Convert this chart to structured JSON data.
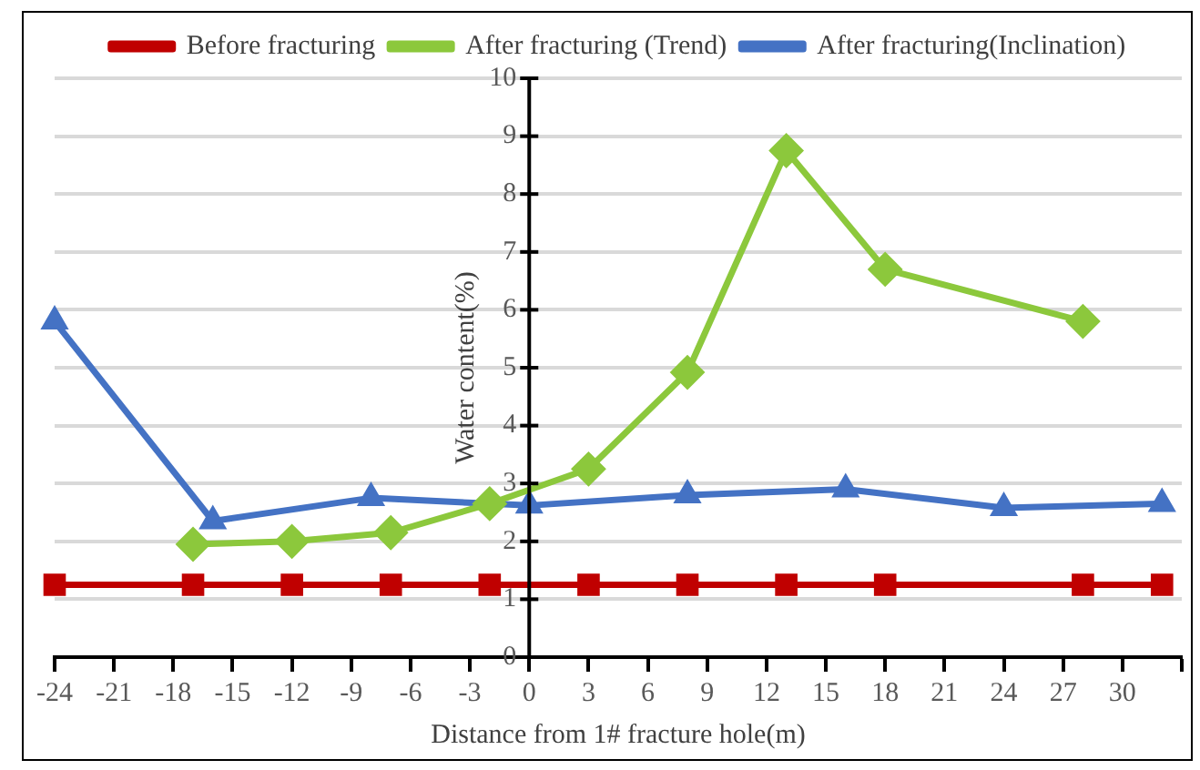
{
  "chart_data": {
    "type": "line",
    "xlabel": "Distance from 1# fracture hole(m)",
    "ylabel": "Water content(%)",
    "xlim": [
      -24,
      33
    ],
    "xticks": [
      -24,
      -21,
      -18,
      -15,
      -12,
      -9,
      -6,
      -3,
      0,
      3,
      6,
      9,
      12,
      15,
      18,
      21,
      24,
      27,
      30,
      {
        "value": 33,
        "label": null
      }
    ],
    "ylim": [
      0,
      10
    ],
    "yticks": [
      0,
      1,
      2,
      3,
      4,
      5,
      6,
      7,
      8,
      9,
      10
    ],
    "grid": "y",
    "legend": "top",
    "series": [
      {
        "name": "Before fracturing",
        "color": "#c00000",
        "marker": "square",
        "x": [
          -24,
          -17,
          -12,
          -7,
          -2,
          3,
          8,
          13,
          18,
          28,
          32
        ],
        "values": [
          1.25,
          1.25,
          1.25,
          1.25,
          1.25,
          1.25,
          1.25,
          1.25,
          1.25,
          1.25,
          1.25
        ]
      },
      {
        "name": "After fracturing (Trend)",
        "color": "#8cc83c",
        "marker": "diamond",
        "x": [
          -17,
          -12,
          -7,
          -2,
          3,
          8,
          13,
          18,
          28
        ],
        "values": [
          1.95,
          2.0,
          2.15,
          2.65,
          3.25,
          4.92,
          8.75,
          6.7,
          5.8
        ]
      },
      {
        "name": "After fracturing(Inclination)",
        "color": "#4472c4",
        "marker": "triangle",
        "x": [
          -24,
          -16,
          -8,
          0,
          8,
          16,
          24,
          32
        ],
        "values": [
          5.8,
          2.35,
          2.75,
          2.62,
          2.8,
          2.9,
          2.58,
          2.65
        ]
      }
    ]
  }
}
